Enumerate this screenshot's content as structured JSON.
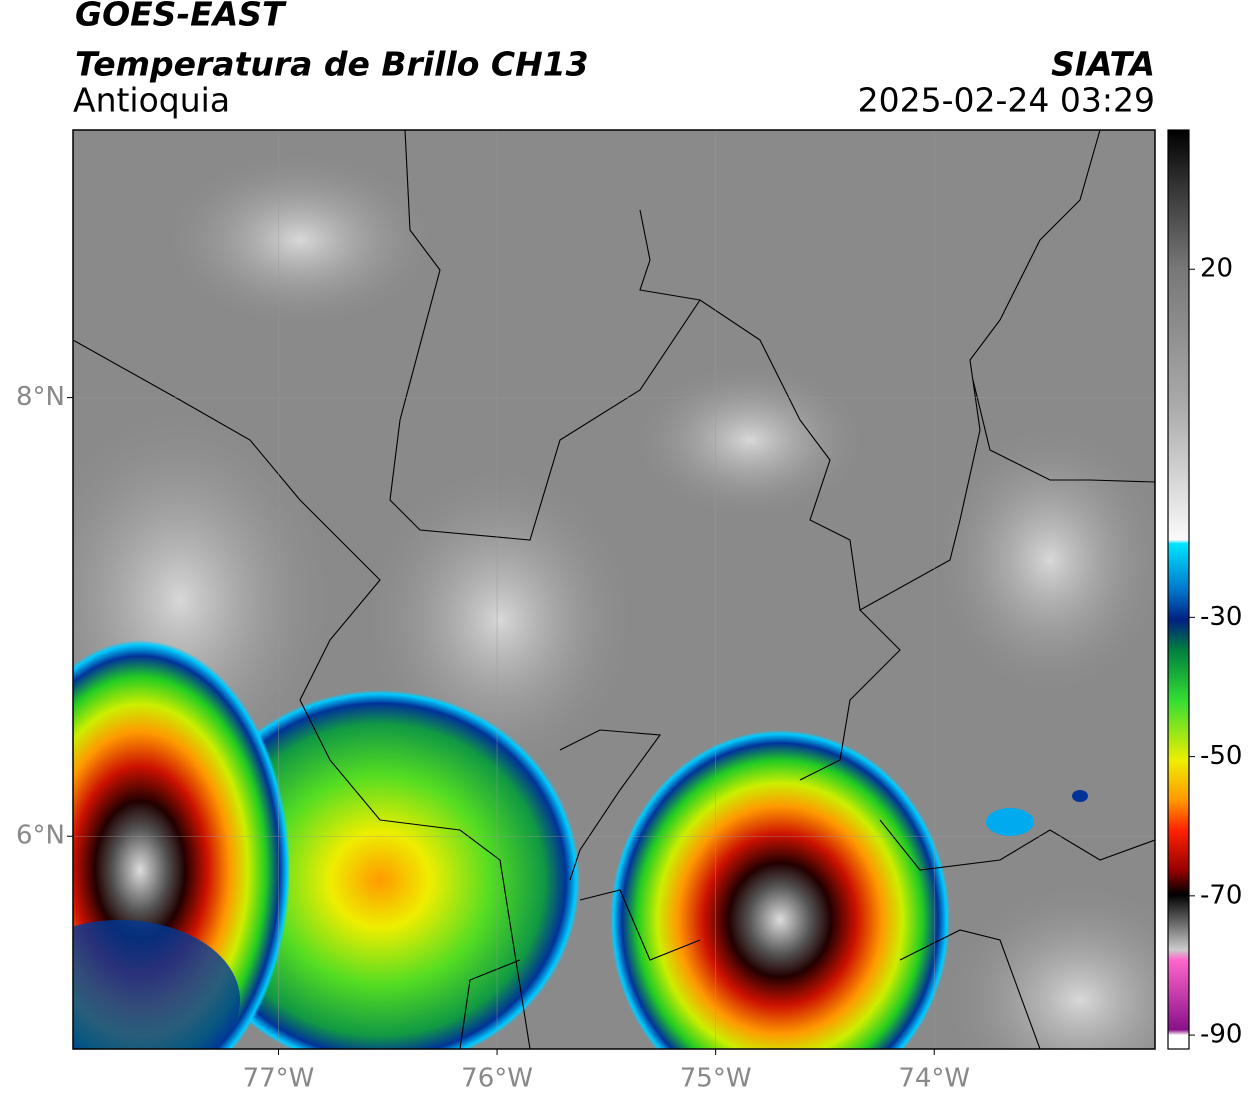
{
  "map": {
    "title": "GOES-EAST",
    "subtitle": "Temperatura de Brillo CH13",
    "region": "Antioquia",
    "source": "SIATA",
    "datetime": "2025-02-24 03:29",
    "xlim": [
      -77.94,
      -72.99
    ],
    "ylim": [
      5.03,
      9.22
    ],
    "xticks": [
      {
        "value": -77,
        "label": "77°W"
      },
      {
        "value": -76,
        "label": "76°W"
      },
      {
        "value": -75,
        "label": "75°W"
      },
      {
        "value": -74,
        "label": "74°W"
      }
    ],
    "yticks": [
      {
        "value": 8,
        "label": "8°N"
      },
      {
        "value": 6,
        "label": "6°N"
      }
    ],
    "grid": true,
    "colorbar": {
      "lim": [
        -92,
        40
      ],
      "ticks": [
        20,
        -30,
        -50,
        -70,
        -90
      ]
    }
  }
}
